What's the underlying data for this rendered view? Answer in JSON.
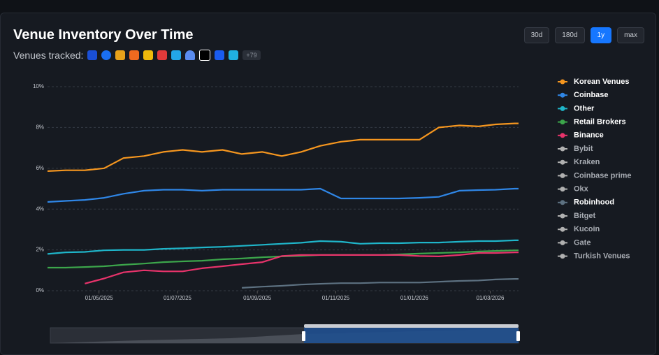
{
  "venues_label": "Venues tracked:",
  "venues_more": "+79",
  "ranges": [
    "30d",
    "180d",
    "1y",
    "max"
  ],
  "active_range": "1y",
  "chart_data": {
    "type": "line",
    "title": "Venue Inventory Over Time",
    "x": [
      "22/03/2025",
      "05/04/2025",
      "20/04/2025",
      "05/05/2025",
      "20/05/2025",
      "05/06/2025",
      "20/06/2025",
      "05/07/2025",
      "20/07/2025",
      "05/08/2025",
      "20/08/2025",
      "05/09/2025",
      "20/09/2025",
      "05/10/2025",
      "20/10/2025",
      "05/11/2025",
      "20/11/2025",
      "05/12/2025",
      "20/12/2025",
      "05/01/2026",
      "20/01/2026",
      "05/02/2026",
      "20/02/2026",
      "05/03/2026",
      "20/03/2026",
      "23/03/2026"
    ],
    "xlim": [
      "22/03/2025",
      "23/03/2026"
    ],
    "xticks": [
      "01/05/2025",
      "01/07/2025",
      "01/09/2025",
      "01/11/2025",
      "01/01/2026",
      "01/03/2026"
    ],
    "ylim": [
      0,
      10
    ],
    "yticks": [
      {
        "value": 0,
        "label": "0%"
      },
      {
        "value": 2,
        "label": "2%"
      },
      {
        "value": 4,
        "label": "4%"
      },
      {
        "value": 6,
        "label": "6%"
      },
      {
        "value": 8,
        "label": "8%"
      },
      {
        "value": 10,
        "label": "10%"
      }
    ],
    "grid": true,
    "legend": "right",
    "series": [
      {
        "name": "Korean Venues",
        "color": "#f5961f",
        "visible": true,
        "values": [
          5.86,
          5.9,
          5.9,
          6.0,
          6.5,
          6.6,
          6.8,
          6.9,
          6.8,
          6.9,
          6.7,
          6.8,
          6.6,
          6.8,
          7.1,
          7.3,
          7.4,
          7.4,
          7.4,
          7.4,
          8.0,
          8.1,
          8.05,
          8.15,
          8.2,
          8.2
        ]
      },
      {
        "name": "Coinbase",
        "color": "#2f86e6",
        "visible": true,
        "values": [
          4.35,
          4.4,
          4.45,
          4.55,
          4.75,
          4.9,
          4.95,
          4.95,
          4.9,
          4.95,
          4.95,
          4.95,
          4.95,
          4.95,
          5.0,
          4.52,
          4.52,
          4.52,
          4.52,
          4.55,
          4.6,
          4.9,
          4.93,
          4.95,
          5.0,
          5.0
        ]
      },
      {
        "name": "Other",
        "color": "#1fb5c9",
        "visible": true,
        "values": [
          1.8,
          1.88,
          1.9,
          1.98,
          2.0,
          2.0,
          2.05,
          2.08,
          2.12,
          2.15,
          2.2,
          2.25,
          2.3,
          2.35,
          2.43,
          2.4,
          2.3,
          2.33,
          2.33,
          2.36,
          2.36,
          2.4,
          2.43,
          2.43,
          2.47,
          2.47
        ]
      },
      {
        "name": "Retail Brokers",
        "color": "#3ca64b",
        "visible": true,
        "values": [
          1.13,
          1.13,
          1.16,
          1.2,
          1.27,
          1.33,
          1.4,
          1.44,
          1.47,
          1.54,
          1.58,
          1.64,
          1.68,
          1.71,
          1.75,
          1.75,
          1.75,
          1.75,
          1.78,
          1.82,
          1.85,
          1.88,
          1.92,
          1.95,
          1.98,
          1.98
        ]
      },
      {
        "name": "Binance",
        "color": "#e8336b",
        "visible": true,
        "values": [
          null,
          null,
          0.35,
          0.6,
          0.9,
          1.0,
          0.95,
          0.95,
          1.1,
          1.2,
          1.3,
          1.4,
          1.7,
          1.75,
          1.75,
          1.75,
          1.75,
          1.75,
          1.75,
          1.7,
          1.68,
          1.75,
          1.85,
          1.85,
          1.88,
          1.88
        ]
      },
      {
        "name": "Bybit",
        "color": "#b0b0b0",
        "visible": false
      },
      {
        "name": "Kraken",
        "color": "#b0b0b0",
        "visible": false
      },
      {
        "name": "Coinbase prime",
        "color": "#b0b0b0",
        "visible": false
      },
      {
        "name": "Okx",
        "color": "#b0b0b0",
        "visible": false
      },
      {
        "name": "Robinhood",
        "color": "#5d7181",
        "visible": true,
        "values": [
          null,
          null,
          null,
          null,
          null,
          null,
          null,
          null,
          null,
          null,
          0.14,
          0.2,
          0.24,
          0.3,
          0.34,
          0.37,
          0.37,
          0.4,
          0.4,
          0.4,
          0.44,
          0.48,
          0.5,
          0.55,
          0.58,
          0.58
        ]
      },
      {
        "name": "Bitget",
        "color": "#b0b0b0",
        "visible": false
      },
      {
        "name": "Kucoin",
        "color": "#b0b0b0",
        "visible": false
      },
      {
        "name": "Gate",
        "color": "#b0b0b0",
        "visible": false
      },
      {
        "name": "Turkish Venues",
        "color": "#b0b0b0",
        "visible": false
      }
    ]
  }
}
